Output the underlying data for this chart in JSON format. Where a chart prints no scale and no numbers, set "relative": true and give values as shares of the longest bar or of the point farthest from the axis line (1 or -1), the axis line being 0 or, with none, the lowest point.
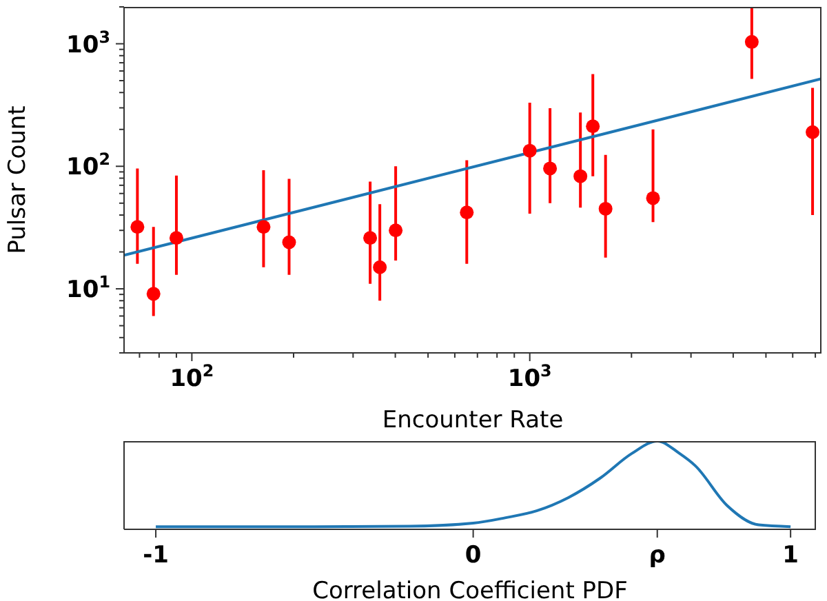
{
  "chart_data": [
    {
      "type": "scatter",
      "xlabel": "Encounter Rate",
      "ylabel": "Pulsar Count",
      "log": "xy",
      "xlim": [
        63,
        7300
      ],
      "ylim": [
        3,
        2000
      ],
      "xticks": [
        {
          "value": 70,
          "label": null
        },
        {
          "value": 80,
          "label": null
        },
        {
          "value": 90,
          "label": null
        },
        {
          "value": 100,
          "label": "10$^{2}$"
        },
        {
          "value": 200,
          "label": null
        },
        {
          "value": 300,
          "label": null
        },
        {
          "value": 400,
          "label": null
        },
        {
          "value": 500,
          "label": null
        },
        {
          "value": 600,
          "label": null
        },
        {
          "value": 700,
          "label": null
        },
        {
          "value": 800,
          "label": null
        },
        {
          "value": 900,
          "label": null
        },
        {
          "value": 1000,
          "label": "10$^{3}$"
        },
        {
          "value": 2000,
          "label": null
        },
        {
          "value": 3000,
          "label": null
        },
        {
          "value": 4000,
          "label": null
        },
        {
          "value": 5000,
          "label": null
        },
        {
          "value": 6000,
          "label": null
        },
        {
          "value": 7000,
          "label": null
        }
      ],
      "yticks": [
        {
          "value": 3,
          "label": null
        },
        {
          "value": 4,
          "label": null
        },
        {
          "value": 5,
          "label": null
        },
        {
          "value": 6,
          "label": null
        },
        {
          "value": 7,
          "label": null
        },
        {
          "value": 8,
          "label": null
        },
        {
          "value": 9,
          "label": null
        },
        {
          "value": 10,
          "label": "10$^{1}$"
        },
        {
          "value": 20,
          "label": null
        },
        {
          "value": 30,
          "label": null
        },
        {
          "value": 40,
          "label": null
        },
        {
          "value": 50,
          "label": null
        },
        {
          "value": 60,
          "label": null
        },
        {
          "value": 70,
          "label": null
        },
        {
          "value": 80,
          "label": null
        },
        {
          "value": 90,
          "label": null
        },
        {
          "value": 100,
          "label": "10$^{2}$"
        },
        {
          "value": 200,
          "label": null
        },
        {
          "value": 300,
          "label": null
        },
        {
          "value": 400,
          "label": null
        },
        {
          "value": 500,
          "label": null
        },
        {
          "value": 600,
          "label": null
        },
        {
          "value": 700,
          "label": null
        },
        {
          "value": 800,
          "label": null
        },
        {
          "value": 900,
          "label": null
        },
        {
          "value": 1000,
          "label": "10$^{3}$"
        },
        {
          "value": 2000,
          "label": null
        }
      ],
      "series": [
        {
          "marker": "circle",
          "color": "#ff0000",
          "x": [
            69,
            77,
            90,
            163,
            194,
            337,
            360,
            401,
            651,
            1000,
            1148,
            1412,
            1537,
            1676,
            2316,
            4540,
            6870
          ],
          "values": [
            32,
            9.1,
            26,
            32,
            24,
            26,
            15,
            30,
            42,
            134,
            96,
            83,
            212,
            45,
            55,
            1035,
            190
          ],
          "errors": [
            [
              16,
              96
            ],
            [
              6,
              32
            ],
            [
              13,
              84
            ],
            [
              15,
              93
            ],
            [
              13,
              79
            ],
            [
              11,
              75
            ],
            [
              8,
              49
            ],
            [
              17,
              100
            ],
            [
              16,
              112
            ],
            [
              41,
              330
            ],
            [
              50,
              298
            ],
            [
              46,
              275
            ],
            [
              83,
              565
            ],
            [
              18,
              124
            ],
            [
              35,
              200
            ],
            [
              517,
              2000
            ],
            [
              40,
              436
            ]
          ]
        },
        {
          "type": "line",
          "color": "#1f77b4",
          "x": [
            63,
            7300
          ],
          "values": [
            18.8,
            518
          ]
        }
      ]
    },
    {
      "type": "line",
      "xlabel": "Correlation Coefficient PDF",
      "color": "#1f77b4",
      "relative": true,
      "tick_labels": "x",
      "xlim": [
        -1.1,
        1.08
      ],
      "xticks": [
        -1,
        0,
        {
          "value": 0.58,
          "label": "ρ"
        },
        1
      ],
      "x": [
        -1,
        -0.5,
        -0.2,
        0,
        0.1,
        0.2,
        0.3,
        0.4,
        0.5,
        0.58,
        0.65,
        0.7,
        0.8,
        0.9,
        1
      ],
      "values": [
        0.03,
        0.03,
        0.035,
        0.07,
        0.13,
        0.21,
        0.36,
        0.58,
        0.86,
        1,
        0.86,
        0.72,
        0.27,
        0.05,
        0.03
      ]
    }
  ]
}
